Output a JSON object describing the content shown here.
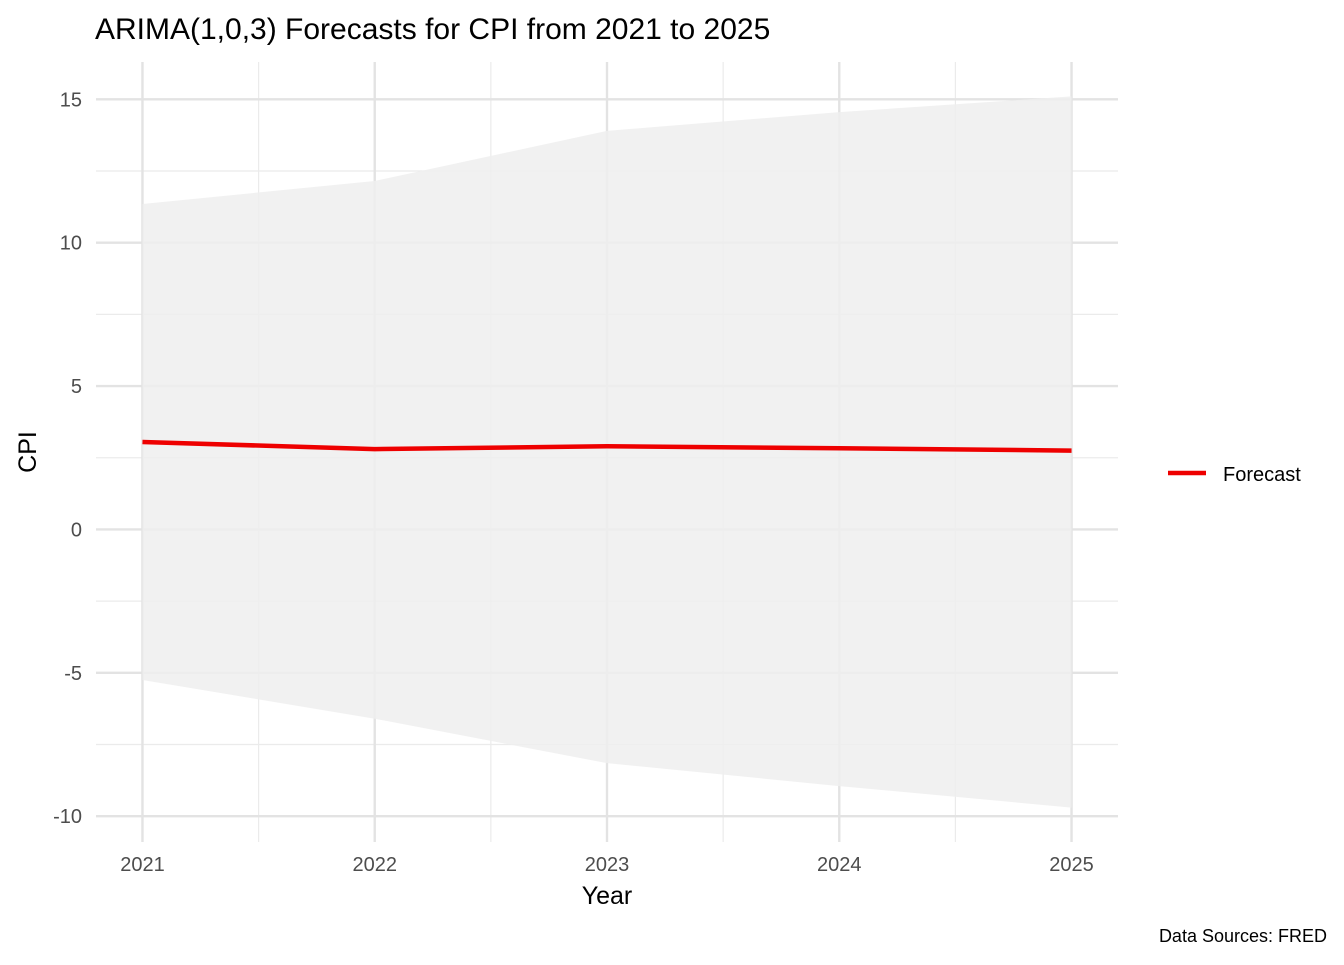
{
  "chart_data": {
    "type": "line",
    "title": "ARIMA(1,0,3) Forecasts for CPI from 2021 to 2025",
    "xlabel": "Year",
    "ylabel": "CPI",
    "caption": "Data Sources: FRED",
    "x": [
      2021,
      2022,
      2023,
      2024,
      2025
    ],
    "x_ticks": [
      "2021",
      "2022",
      "2023",
      "2024",
      "2025"
    ],
    "y_ticks": [
      "-10",
      "-5",
      "0",
      "5",
      "10",
      "15"
    ],
    "xlim": [
      2020.8,
      2025.2
    ],
    "ylim": [
      -10.9,
      16.3
    ],
    "grid": true,
    "legend_position": "right",
    "series": [
      {
        "name": "Forecast",
        "values": [
          3.05,
          2.8,
          2.9,
          2.83,
          2.75
        ],
        "color": "#ee0000"
      }
    ],
    "interval": {
      "upper": [
        11.35,
        12.15,
        13.9,
        14.55,
        15.1
      ],
      "lower": [
        -5.25,
        -6.6,
        -8.15,
        -8.95,
        -9.7
      ],
      "color": "#efefef"
    }
  }
}
